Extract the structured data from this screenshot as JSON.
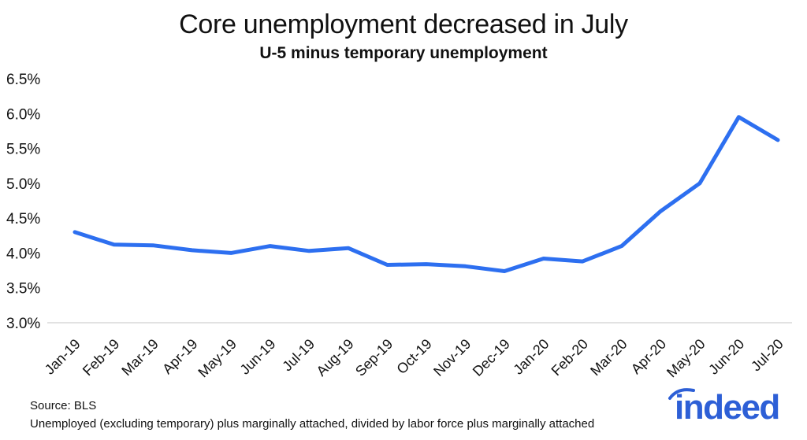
{
  "chart_data": {
    "type": "line",
    "title": "Core unemployment decreased in July",
    "subtitle": "U-5 minus temporary unemployment",
    "categories": [
      "Jan-19",
      "Feb-19",
      "Mar-19",
      "Apr-19",
      "May-19",
      "Jun-19",
      "Jul-19",
      "Aug-19",
      "Sep-19",
      "Oct-19",
      "Nov-19",
      "Dec-19",
      "Jan-20",
      "Feb-20",
      "Mar-20",
      "Apr-20",
      "May-20",
      "Jun-20",
      "Jul-20"
    ],
    "series": [
      {
        "values": [
          4.3,
          4.12,
          4.11,
          4.04,
          4.0,
          4.1,
          4.03,
          4.07,
          3.83,
          3.84,
          3.81,
          3.74,
          3.92,
          3.88,
          4.1,
          4.6,
          5.0,
          5.95,
          5.62
        ]
      }
    ],
    "ylim": [
      3.0,
      6.5
    ],
    "yticks": [
      "3.0%",
      "3.5%",
      "4.0%",
      "4.5%",
      "5.0%",
      "5.5%",
      "6.0%",
      "6.5%"
    ],
    "ytick_values": [
      3.0,
      3.5,
      4.0,
      4.5,
      5.0,
      5.5,
      6.0,
      6.5
    ],
    "grid": false,
    "line_color": "#2d6ff0"
  },
  "footer": {
    "source": "Source: BLS",
    "note": "Unemployed (excluding temporary) plus marginally attached, divided by labor force plus marginally attached"
  },
  "logo": {
    "text": "indeed",
    "color": "#2d5fd6"
  }
}
